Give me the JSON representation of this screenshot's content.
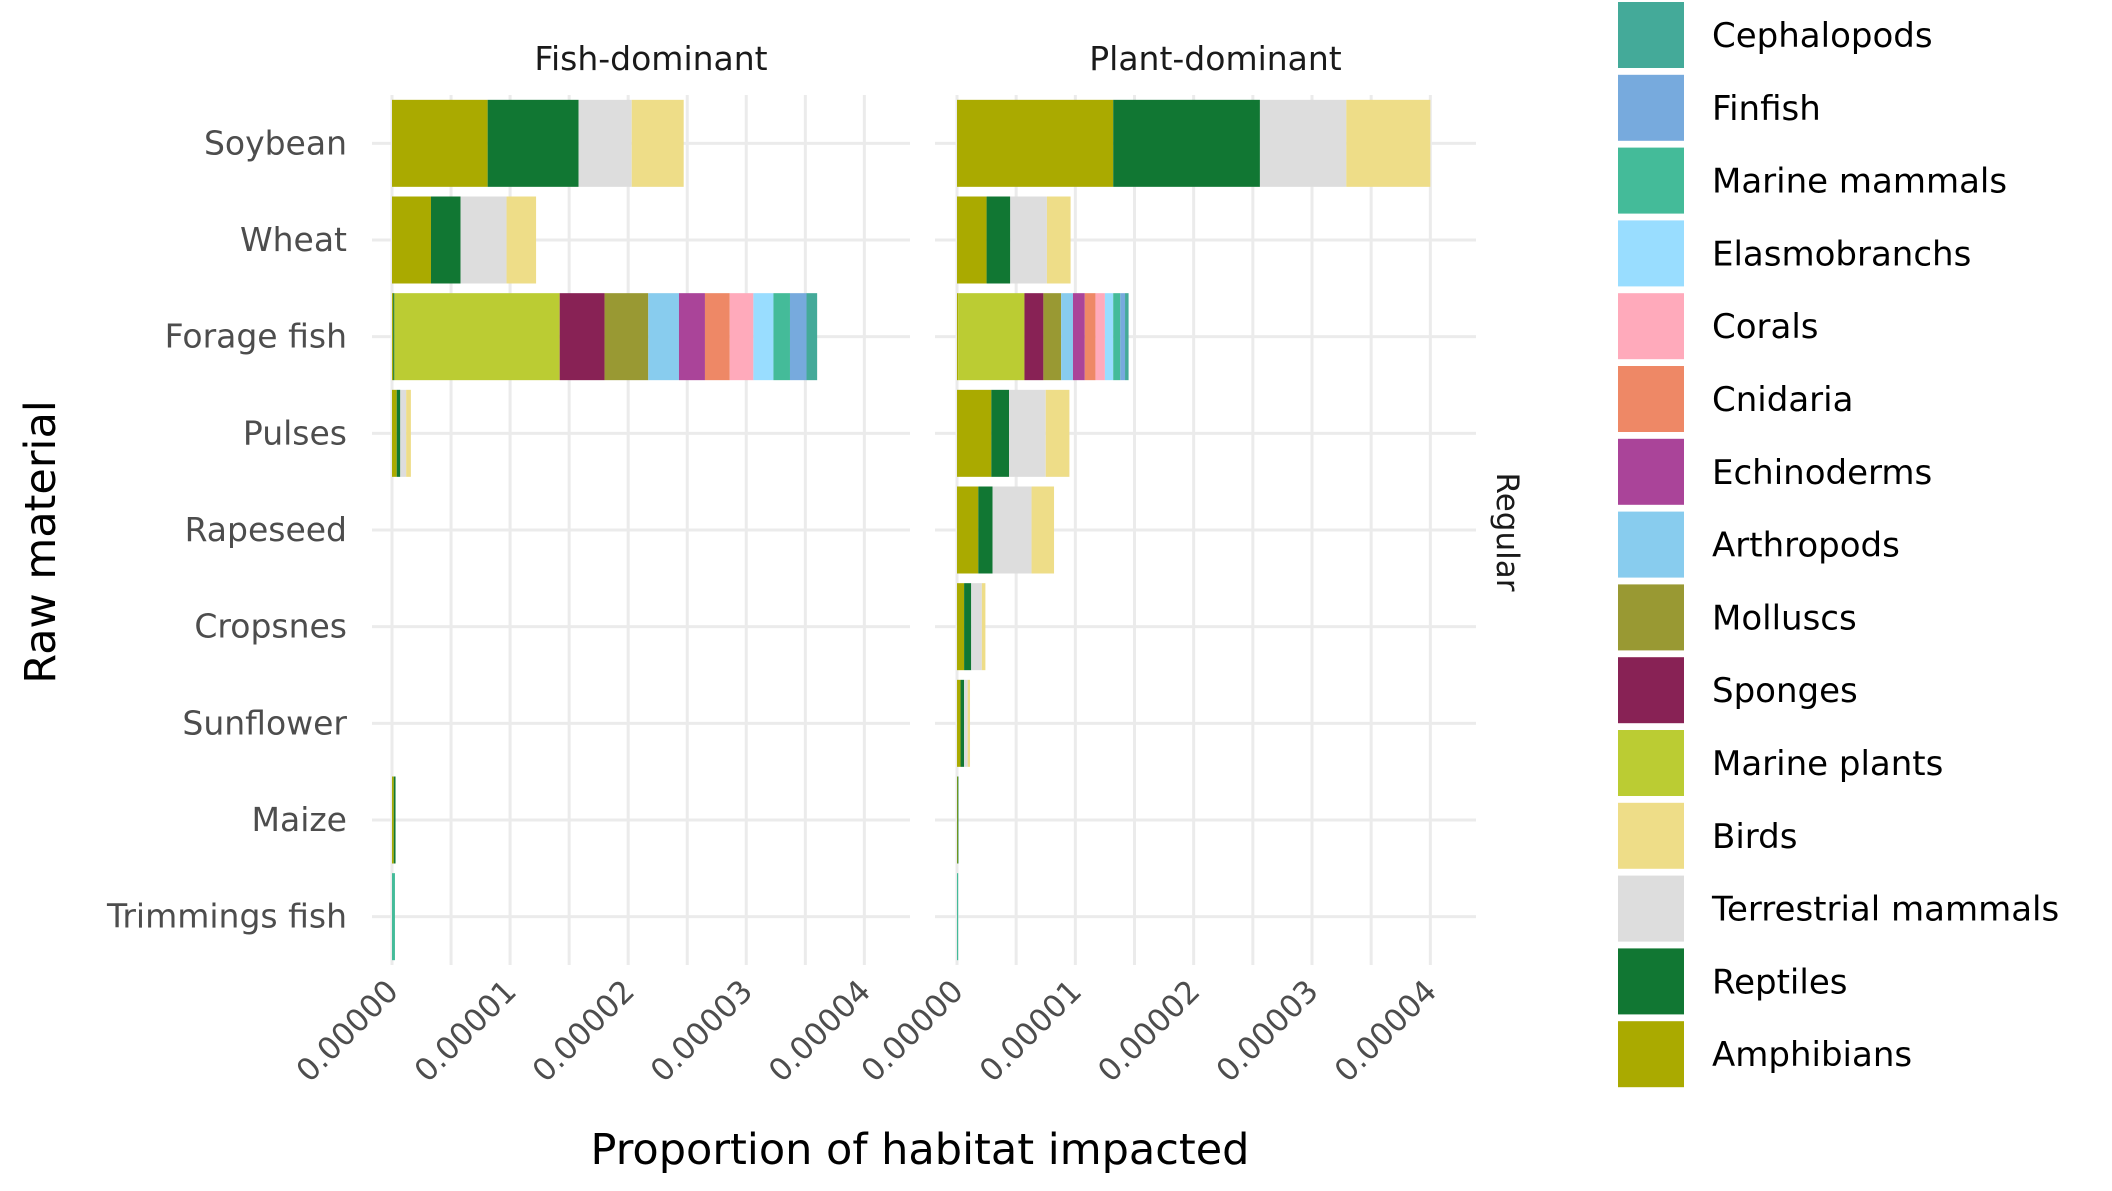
{
  "chart_data": {
    "type": "bar",
    "orientation": "horizontal",
    "stacked": true,
    "xlabel": "Proportion of habitat impacted",
    "ylabel": "Raw material",
    "facet_row_label": "Regular",
    "xlim": [
      0,
      4.2e-05
    ],
    "x_ticks": [
      "0.00000",
      "0.00001",
      "0.00002",
      "0.00003",
      "0.00004"
    ],
    "x_tick_values": [
      0,
      1e-05,
      2e-05,
      3e-05,
      4e-05
    ],
    "grid": true,
    "legend_position": "right",
    "categories": [
      "Soybean",
      "Wheat",
      "Forage fish",
      "Pulses",
      "Rapeseed",
      "Cropsnes",
      "Sunflower",
      "Maize",
      "Trimmings fish"
    ],
    "legend": [
      {
        "name": "Cephalopods",
        "color": "#44AA99"
      },
      {
        "name": "Finfish",
        "color": "#77AADD"
      },
      {
        "name": "Marine mammals",
        "color": "#44BB99"
      },
      {
        "name": "Elasmobranchs",
        "color": "#99DDFF"
      },
      {
        "name": "Corals",
        "color": "#FFAABB"
      },
      {
        "name": "Cnidaria",
        "color": "#EE8866"
      },
      {
        "name": "Echinoderms",
        "color": "#AA4499"
      },
      {
        "name": "Arthropods",
        "color": "#88CCEE"
      },
      {
        "name": "Molluscs",
        "color": "#999933"
      },
      {
        "name": "Sponges",
        "color": "#882255"
      },
      {
        "name": "Marine plants",
        "color": "#BBCC33"
      },
      {
        "name": "Birds",
        "color": "#EEDD88"
      },
      {
        "name": "Terrestrial mammals",
        "color": "#DDDDDD"
      },
      {
        "name": "Reptiles",
        "color": "#117733"
      },
      {
        "name": "Amphibians",
        "color": "#AAAA00"
      }
    ],
    "stack_order": [
      "Amphibians",
      "Reptiles",
      "Terrestrial mammals",
      "Birds",
      "Marine plants",
      "Sponges",
      "Molluscs",
      "Arthropods",
      "Echinoderms",
      "Cnidaria",
      "Corals",
      "Elasmobranchs",
      "Marine mammals",
      "Finfish",
      "Cephalopods"
    ],
    "panels": [
      {
        "title": "Fish-dominant",
        "rows": [
          {
            "category": "Soybean",
            "values": {
              "Amphibians": 8.1e-06,
              "Reptiles": 7.7e-06,
              "Terrestrial mammals": 4.5e-06,
              "Birds": 4.4e-06
            }
          },
          {
            "category": "Wheat",
            "values": {
              "Amphibians": 3.3e-06,
              "Reptiles": 2.5e-06,
              "Terrestrial mammals": 3.9e-06,
              "Birds": 2.5e-06
            }
          },
          {
            "category": "Forage fish",
            "values": {
              "Amphibians": 1e-07,
              "Reptiles": 1e-07,
              "Marine plants": 1.4e-05,
              "Sponges": 3.8e-06,
              "Molluscs": 3.7e-06,
              "Arthropods": 2.6e-06,
              "Echinoderms": 2.2e-06,
              "Cnidaria": 2.1e-06,
              "Corals": 2e-06,
              "Elasmobranchs": 1.7e-06,
              "Marine mammals": 1.4e-06,
              "Finfish": 1.4e-06,
              "Cephalopods": 9e-07
            }
          },
          {
            "category": "Pulses",
            "values": {
              "Amphibians": 4e-07,
              "Reptiles": 3e-07,
              "Terrestrial mammals": 5e-07,
              "Birds": 4e-07
            }
          },
          {
            "category": "Rapeseed",
            "values": {}
          },
          {
            "category": "Cropsnes",
            "values": {}
          },
          {
            "category": "Sunflower",
            "values": {}
          },
          {
            "category": "Maize",
            "values": {
              "Amphibians": 1.5e-07,
              "Reptiles": 1.5e-07
            }
          },
          {
            "category": "Trimmings fish",
            "values": {
              "Marine mammals": 2.5e-07
            }
          }
        ]
      },
      {
        "title": "Plant-dominant",
        "rows": [
          {
            "category": "Soybean",
            "values": {
              "Amphibians": 1.32e-05,
              "Reptiles": 1.24e-05,
              "Terrestrial mammals": 7.3e-06,
              "Birds": 7.1e-06
            }
          },
          {
            "category": "Wheat",
            "values": {
              "Amphibians": 2.5e-06,
              "Reptiles": 2e-06,
              "Terrestrial mammals": 3.1e-06,
              "Birds": 2e-06
            }
          },
          {
            "category": "Forage fish",
            "values": {
              "Amphibians": 1e-07,
              "Marine plants": 5.6e-06,
              "Sponges": 1.6e-06,
              "Molluscs": 1.5e-06,
              "Arthropods": 1e-06,
              "Echinoderms": 1e-06,
              "Cnidaria": 9e-07,
              "Corals": 8e-07,
              "Elasmobranchs": 7e-07,
              "Marine mammals": 6e-07,
              "Finfish": 4e-07,
              "Cephalopods": 3e-07
            }
          },
          {
            "category": "Pulses",
            "values": {
              "Amphibians": 2.9e-06,
              "Reptiles": 1.5e-06,
              "Terrestrial mammals": 3.1e-06,
              "Birds": 2e-06
            }
          },
          {
            "category": "Rapeseed",
            "values": {
              "Amphibians": 1.8e-06,
              "Reptiles": 1.2e-06,
              "Terrestrial mammals": 3.3e-06,
              "Birds": 1.9e-06
            }
          },
          {
            "category": "Cropsnes",
            "values": {
              "Amphibians": 6e-07,
              "Reptiles": 6e-07,
              "Terrestrial mammals": 9e-07,
              "Birds": 3e-07
            }
          },
          {
            "category": "Sunflower",
            "values": {
              "Amphibians": 3e-07,
              "Reptiles": 3e-07,
              "Terrestrial mammals": 3e-07,
              "Birds": 2e-07
            }
          },
          {
            "category": "Maize",
            "values": {
              "Amphibians": 5e-08,
              "Reptiles": 5e-08
            }
          },
          {
            "category": "Trimmings fish",
            "values": {
              "Marine mammals": 1e-07
            }
          }
        ]
      }
    ]
  }
}
